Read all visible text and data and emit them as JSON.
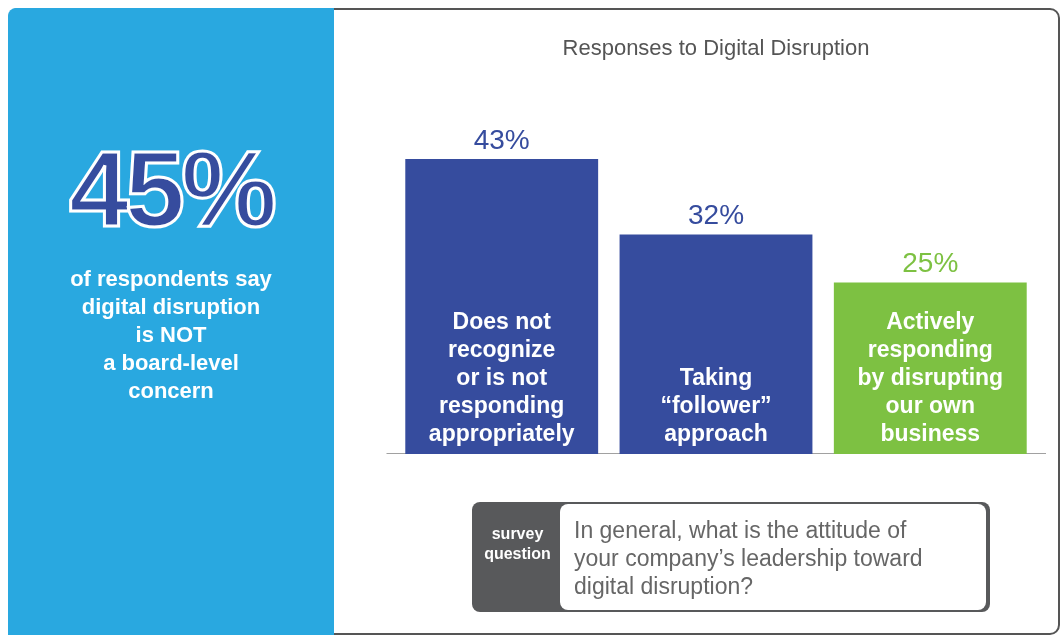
{
  "chart_data": {
    "type": "bar",
    "title": "Responses to Digital Disruption",
    "categories": [
      "Does not\nrecognize\nor is not\nresponding\nappropriately",
      "Taking\n“follower”\napproach",
      "Actively\nresponding\nby disrupting\nour own\nbusiness"
    ],
    "values": [
      43,
      32,
      25
    ],
    "colors": [
      "#364c9e",
      "#364c9e",
      "#7dc142"
    ],
    "value_labels": [
      "43%",
      "32%",
      "25%"
    ],
    "annotations": [
      "45%",
      "of respondents say\ndigital disruption\nis NOT\na board-level\nconcern",
      "survey\nquestion",
      "In general, what is the attitude of\nyour company’s leadership toward\ndigital disruption?"
    ]
  }
}
